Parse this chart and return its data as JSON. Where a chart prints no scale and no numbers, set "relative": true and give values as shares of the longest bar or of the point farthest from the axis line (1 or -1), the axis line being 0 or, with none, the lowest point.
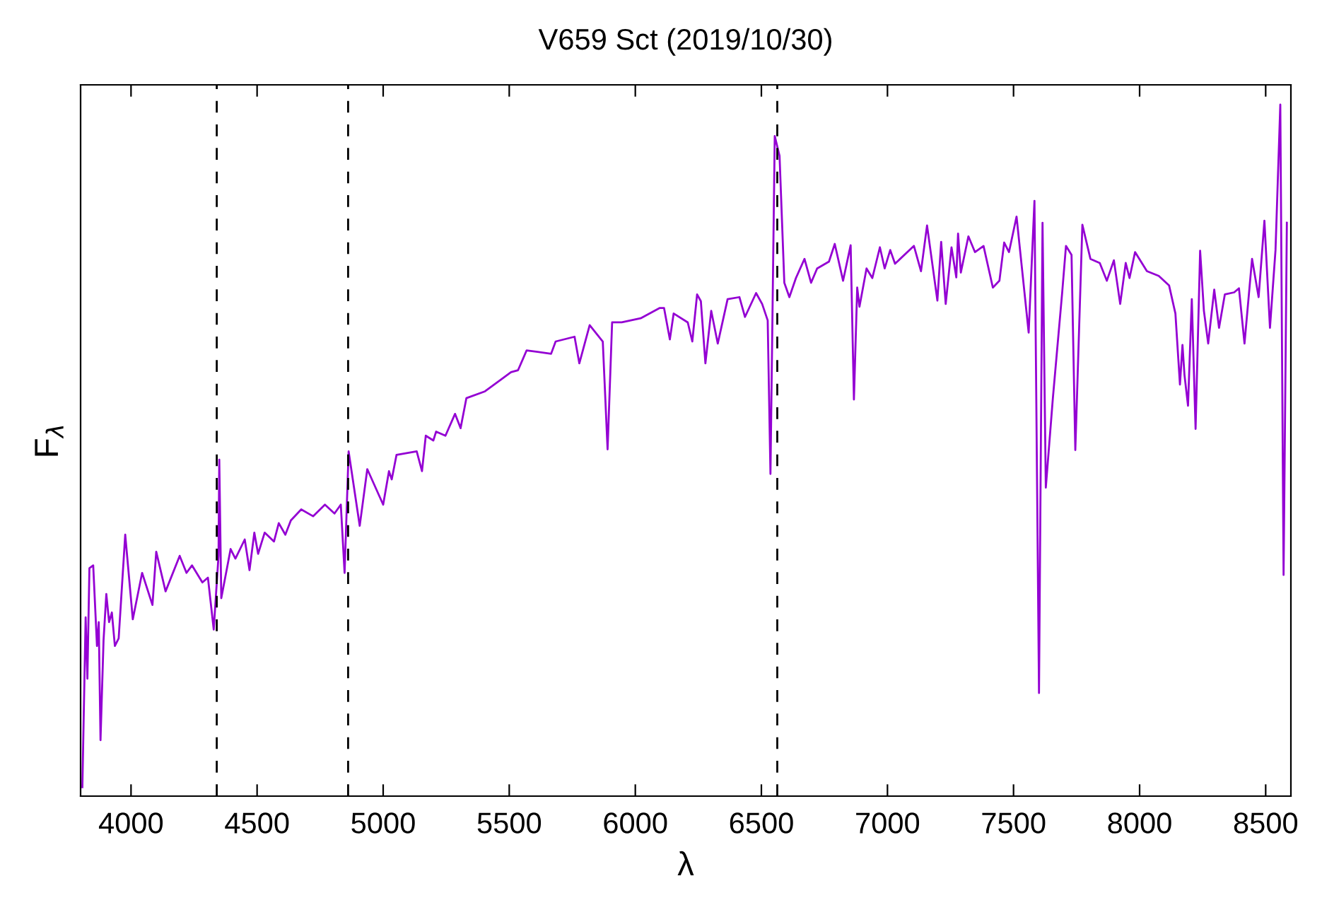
{
  "chart_data": {
    "type": "line",
    "title": "V659 Sct (2019/10/30)",
    "xlabel": "λ",
    "ylabel": "F$_{λ}$",
    "relative": true,
    "xlim": [
      3800,
      8600
    ],
    "xticks": [
      4000,
      4500,
      5000,
      5500,
      6000,
      6500,
      7000,
      7500,
      8000,
      8500
    ],
    "grid": false,
    "legend": false,
    "marker": "none",
    "line_style": "solid",
    "ref_lines": [
      {
        "axis": "x",
        "value": 4340,
        "color": "#000000",
        "line_style": "dashed"
      },
      {
        "axis": "x",
        "value": 4861,
        "color": "#000000",
        "line_style": "dashed"
      },
      {
        "axis": "x",
        "value": 6563,
        "color": "#000000",
        "line_style": "dashed"
      }
    ],
    "series": [
      {
        "color": "#9400d3",
        "x": [
          3807,
          3820,
          3827,
          3835,
          3850,
          3865,
          3872,
          3879,
          3891,
          3902,
          3913,
          3924,
          3936,
          3951,
          3977,
          4007,
          4044,
          4085,
          4100,
          4137,
          4193,
          4220,
          4242,
          4283,
          4305,
          4328,
          4347,
          4350,
          4358,
          4395,
          4414,
          4451,
          4470,
          4489,
          4504,
          4530,
          4567,
          4586,
          4612,
          4634,
          4675,
          4722,
          4769,
          4807,
          4832,
          4847,
          4863,
          4907,
          4937,
          5000,
          5023,
          5034,
          5053,
          5133,
          5154,
          5169,
          5199,
          5210,
          5247,
          5285,
          5307,
          5330,
          5404,
          5470,
          5507,
          5535,
          5569,
          5666,
          5684,
          5759,
          5778,
          5819,
          5871,
          5890,
          5908,
          5946,
          6021,
          6096,
          6114,
          6137,
          6152,
          6208,
          6226,
          6245,
          6260,
          6278,
          6301,
          6327,
          6366,
          6413,
          6435,
          6479,
          6503,
          6525,
          6536,
          6553,
          6572,
          6591,
          6611,
          6637,
          6671,
          6697,
          6721,
          6768,
          6791,
          6824,
          6854,
          6867,
          6880,
          6889,
          6917,
          6940,
          6970,
          6989,
          7011,
          7030,
          7105,
          7133,
          7157,
          7198,
          7213,
          7231,
          7254,
          7273,
          7280,
          7291,
          7321,
          7347,
          7381,
          7418,
          7444,
          7463,
          7482,
          7512,
          7560,
          7583,
          7601,
          7615,
          7628,
          7656,
          7693,
          7708,
          7730,
          7745,
          7773,
          7805,
          7842,
          7870,
          7898,
          7923,
          7945,
          7960,
          7982,
          8029,
          8076,
          8117,
          8142,
          8160,
          8170,
          8178,
          8192,
          8207,
          8222,
          8240,
          8255,
          8272,
          8296,
          8315,
          8338,
          8375,
          8394,
          8416,
          8446,
          8472,
          8495,
          8517,
          8539,
          8558,
          8571,
          8584
        ],
        "values": [
          0,
          0.249,
          0.159,
          0.321,
          0.325,
          0.207,
          0.242,
          0.069,
          0.215,
          0.283,
          0.242,
          0.256,
          0.207,
          0.218,
          0.37,
          0.246,
          0.314,
          0.267,
          0.345,
          0.287,
          0.339,
          0.314,
          0.325,
          0.3,
          0.307,
          0.231,
          0.339,
          0.48,
          0.277,
          0.349,
          0.335,
          0.363,
          0.318,
          0.373,
          0.342,
          0.373,
          0.36,
          0.387,
          0.37,
          0.391,
          0.407,
          0.397,
          0.414,
          0.401,
          0.414,
          0.314,
          0.492,
          0.383,
          0.466,
          0.414,
          0.463,
          0.451,
          0.487,
          0.492,
          0.463,
          0.515,
          0.508,
          0.521,
          0.515,
          0.547,
          0.526,
          0.57,
          0.58,
          0.598,
          0.608,
          0.611,
          0.64,
          0.635,
          0.653,
          0.66,
          0.621,
          0.677,
          0.653,
          0.495,
          0.681,
          0.681,
          0.687,
          0.702,
          0.702,
          0.656,
          0.694,
          0.681,
          0.653,
          0.722,
          0.712,
          0.621,
          0.698,
          0.65,
          0.715,
          0.718,
          0.689,
          0.724,
          0.708,
          0.684,
          0.459,
          0.954,
          0.925,
          0.739,
          0.718,
          0.746,
          0.774,
          0.739,
          0.76,
          0.77,
          0.796,
          0.742,
          0.794,
          0.568,
          0.732,
          0.704,
          0.76,
          0.746,
          0.791,
          0.76,
          0.787,
          0.767,
          0.793,
          0.756,
          0.823,
          0.713,
          0.799,
          0.708,
          0.791,
          0.747,
          0.811,
          0.754,
          0.807,
          0.784,
          0.793,
          0.732,
          0.742,
          0.798,
          0.784,
          0.836,
          0.666,
          0.859,
          0.138,
          0.827,
          0.439,
          0.57,
          0.725,
          0.793,
          0.78,
          0.494,
          0.824,
          0.774,
          0.768,
          0.742,
          0.772,
          0.708,
          0.768,
          0.746,
          0.784,
          0.756,
          0.749,
          0.735,
          0.694,
          0.59,
          0.648,
          0.604,
          0.559,
          0.715,
          0.525,
          0.786,
          0.698,
          0.65,
          0.729,
          0.673,
          0.722,
          0.725,
          0.731,
          0.65,
          0.774,
          0.718,
          0.83,
          0.673,
          0.787,
          1,
          0.311,
          0.827
        ]
      }
    ]
  }
}
